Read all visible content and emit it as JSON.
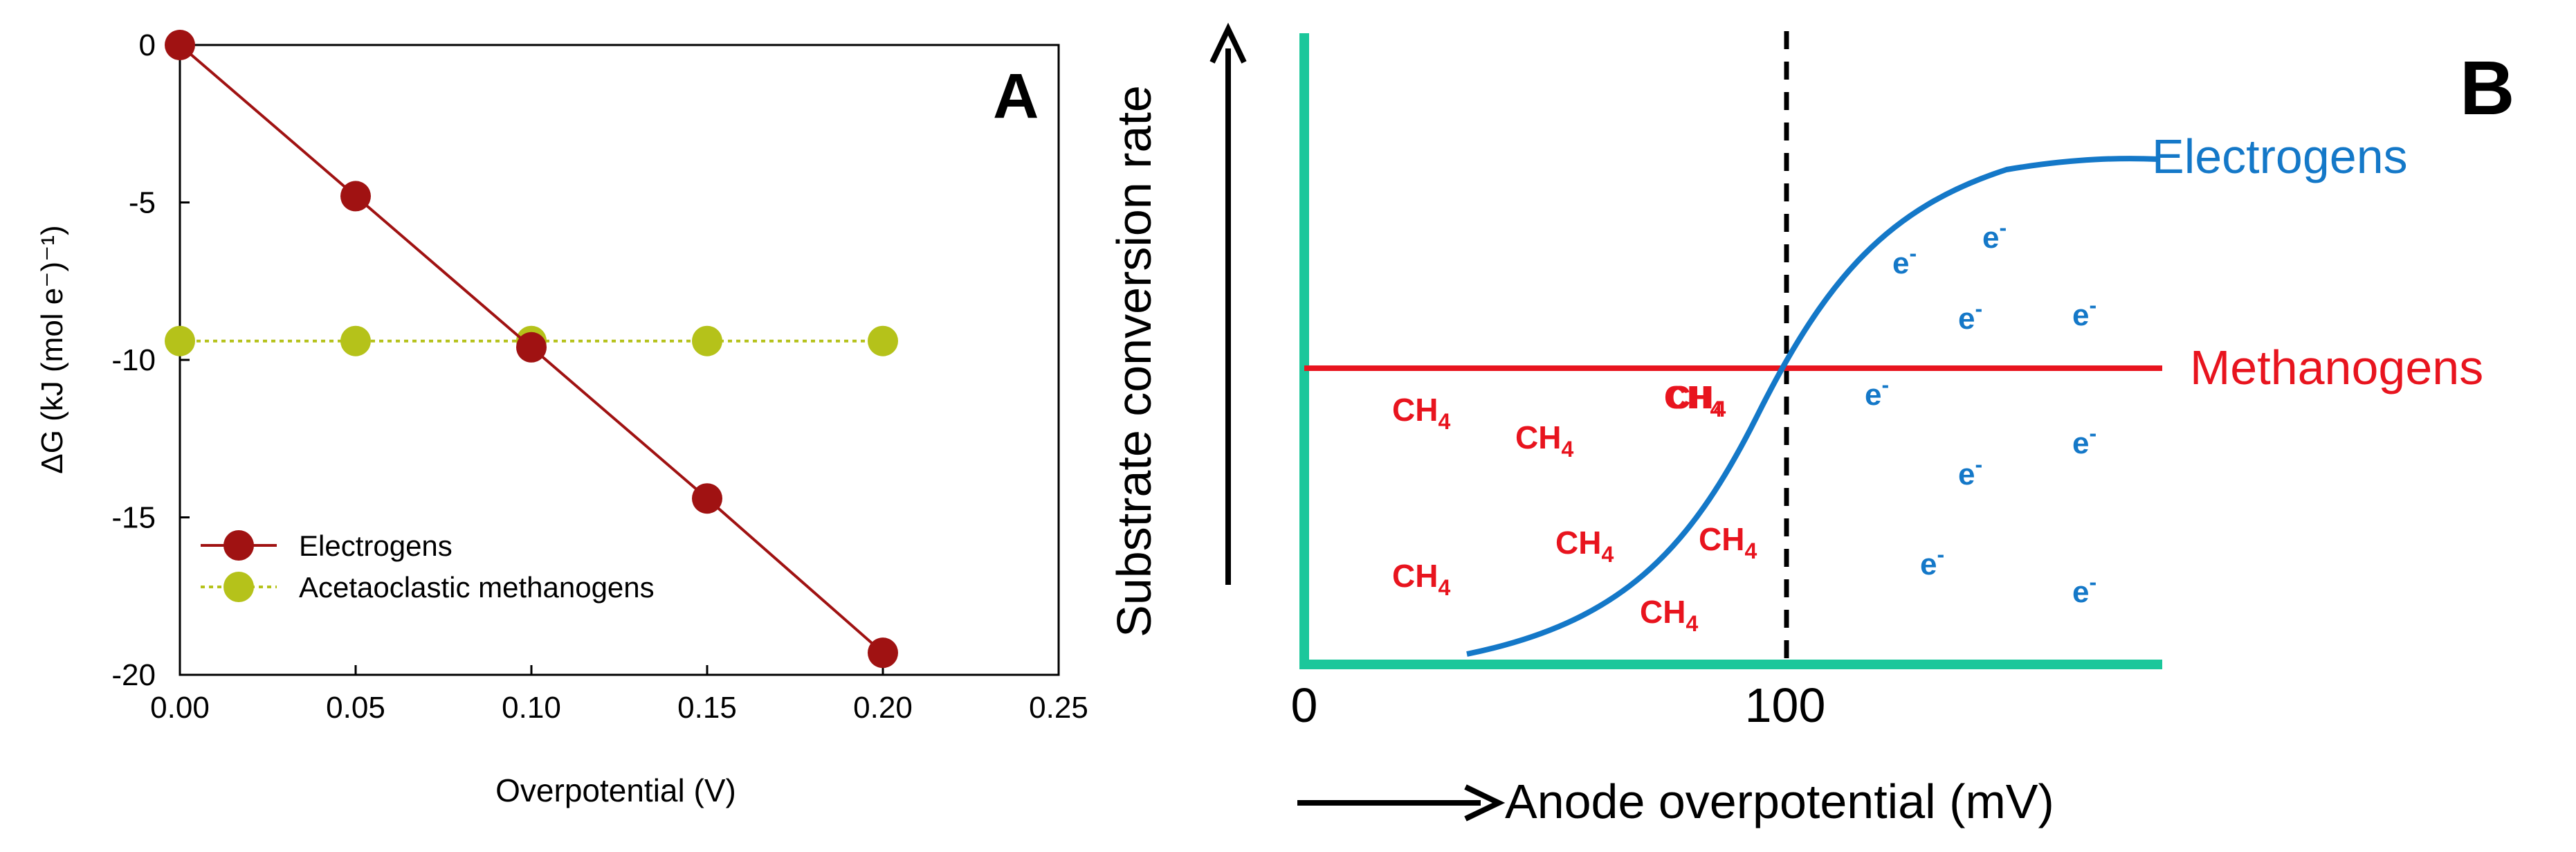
{
  "chart_data": [
    {
      "type": "line",
      "panel_label": "A",
      "xlabel": "Overpotential (V)",
      "ylabel": "ΔG (kJ (mol e⁻)⁻¹)",
      "xlim": [
        0,
        0.25
      ],
      "ylim": [
        -20,
        0
      ],
      "x_ticks": [
        0.0,
        0.05,
        0.1,
        0.15,
        0.2,
        0.25
      ],
      "x_tick_labels": [
        "0.00",
        "0.05",
        "0.10",
        "0.15",
        "0.20",
        "0.25"
      ],
      "y_ticks": [
        0,
        -5,
        -10,
        -15,
        -20
      ],
      "y_tick_labels": [
        "0",
        "-5",
        "-10",
        "-15",
        "-20"
      ],
      "legend_position": "bottom-left",
      "series": [
        {
          "name": "Electrogens",
          "color": "#a01212",
          "line_style": "solid",
          "x": [
            0.0,
            0.05,
            0.1,
            0.15,
            0.2
          ],
          "y": [
            0.0,
            -4.8,
            -9.6,
            -14.4,
            -19.3
          ]
        },
        {
          "name": "Acetaoclastic methanogens",
          "color": "#b5c21a",
          "line_style": "dotted",
          "x": [
            0.0,
            0.05,
            0.1,
            0.15,
            0.2
          ],
          "y": [
            -9.4,
            -9.4,
            -9.4,
            -9.4,
            -9.4
          ]
        }
      ]
    },
    {
      "type": "line",
      "panel_label": "B",
      "xlabel": "Anode overpotential (mV)",
      "ylabel": "Substrate conversion rate",
      "x_tick_labels": [
        "0",
        "100"
      ],
      "reference_line_x": 100,
      "series": [
        {
          "name": "Electrogens",
          "color": "#1478c8",
          "shape": "sigmoid"
        },
        {
          "name": "Methanogens",
          "color": "#e8141e",
          "shape": "constant"
        }
      ],
      "axis_color": "#1bc79b",
      "annotations": {
        "methane_label_main": "CH",
        "methane_label_sub": "4",
        "methane_count": 8,
        "electron_label_main": "e",
        "electron_label_sup": "-",
        "electron_count": 9
      }
    }
  ]
}
